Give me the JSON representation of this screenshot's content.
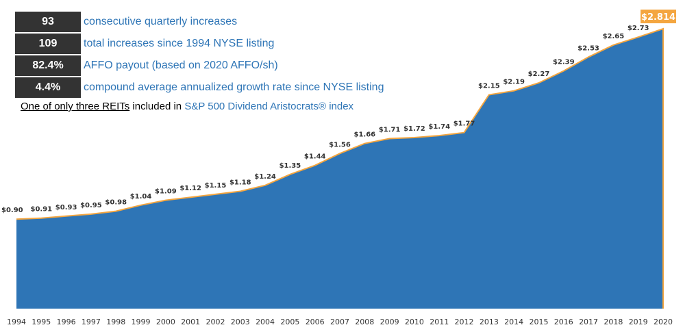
{
  "stats": [
    {
      "value": "93",
      "text": "consecutive quarterly increases"
    },
    {
      "value": "109",
      "text": "total increases since 1994 NYSE listing"
    },
    {
      "value": "82.4%",
      "text": "AFFO payout (based on 2020 AFFO/sh)"
    },
    {
      "value": "4.4%",
      "text": "compound average annualized growth rate since NYSE listing"
    }
  ],
  "note": {
    "part1": "One of only three REITs",
    "part2": " included in ",
    "part3": "S&P 500 Dividend Aristocrats® index"
  },
  "colors": {
    "area": "#2e75b6",
    "line": "#f4a640",
    "highlight": "#f4a640",
    "stat_box": "#333333"
  },
  "chart_data": {
    "type": "area",
    "title": "",
    "xlabel": "",
    "ylabel": "",
    "x": [
      "1994",
      "1995",
      "1996",
      "1997",
      "1998",
      "1999",
      "2000",
      "2001",
      "2002",
      "2003",
      "2004",
      "2005",
      "2006",
      "2007",
      "2008",
      "2009",
      "2010",
      "2011",
      "2012",
      "2013",
      "2014",
      "2015",
      "2016",
      "2017",
      "2018",
      "2019",
      "2020"
    ],
    "series": [
      {
        "values": [
          0.9,
          0.91,
          0.93,
          0.95,
          0.98,
          1.04,
          1.09,
          1.12,
          1.15,
          1.18,
          1.24,
          1.35,
          1.44,
          1.56,
          1.66,
          1.71,
          1.72,
          1.74,
          1.77,
          2.15,
          2.19,
          2.27,
          2.39,
          2.53,
          2.65,
          2.73,
          2.814
        ],
        "labels": [
          "$0.90",
          "$0.91",
          "$0.93",
          "$0.95",
          "$0.98",
          "$1.04",
          "$1.09",
          "$1.12",
          "$1.15",
          "$1.18",
          "$1.24",
          "$1.35",
          "$1.44",
          "$1.56",
          "$1.66",
          "$1.71",
          "$1.72",
          "$1.74",
          "$1.77",
          "$2.15",
          "$2.19",
          "$2.27",
          "$2.39",
          "$2.53",
          "$2.65",
          "$2.73",
          "$2.814"
        ]
      }
    ],
    "ylim": [
      0,
      2.814
    ],
    "grid": false,
    "legend": "none"
  }
}
